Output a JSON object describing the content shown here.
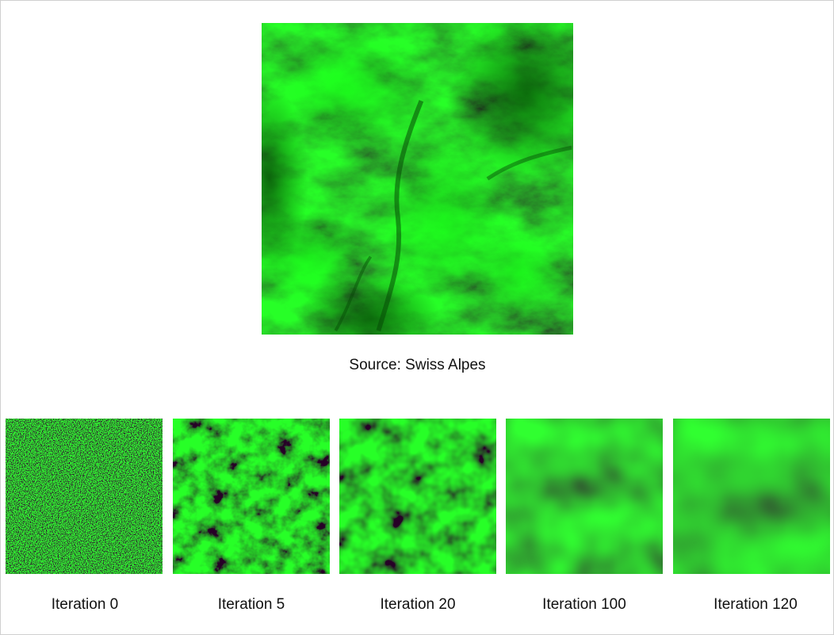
{
  "source": {
    "caption": "Source: Swiss Alpes",
    "base_color": "#0a7a0a",
    "highlight_color": "#13e613",
    "shadow_color": "#064006"
  },
  "iterations": [
    {
      "label": "Iteration 0"
    },
    {
      "label": "Iteration 5"
    },
    {
      "label": "Iteration 20"
    },
    {
      "label": "Iteration 100"
    },
    {
      "label": "Iteration 120"
    }
  ]
}
